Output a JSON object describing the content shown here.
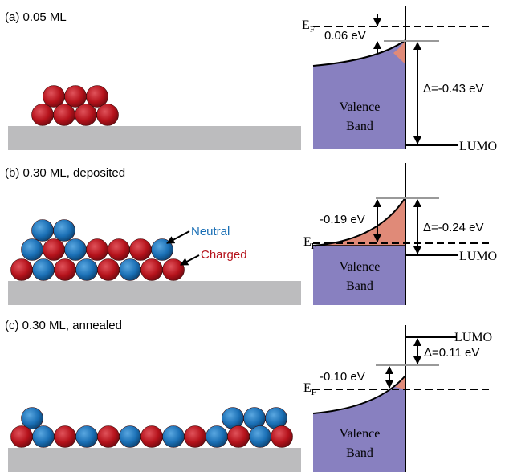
{
  "panels": [
    {
      "label": "(a) 0.05 ML",
      "ef": {
        "main": "E",
        "sub": "F"
      },
      "offset": "0.06 eV",
      "delta": "Δ=-0.43 eV",
      "valence": [
        "Valence",
        "Band"
      ],
      "lumo": "LUMO"
    },
    {
      "label": "(b) 0.30 ML, deposited",
      "ef": {
        "main": "E",
        "sub": "F"
      },
      "offset": "-0.19 eV",
      "delta": "Δ=-0.24 eV",
      "valence": [
        "Valence",
        "Band"
      ],
      "lumo": "LUMO"
    },
    {
      "label": "(c) 0.30 ML, annealed",
      "ef": {
        "main": "E",
        "sub": "F"
      },
      "offset": "-0.10 eV",
      "delta": "Δ=0.11 eV",
      "valence": [
        "Valence",
        "Band"
      ],
      "lumo": "LUMO"
    }
  ],
  "legend": {
    "neutral": "Neutral",
    "charged": "Charged"
  }
}
